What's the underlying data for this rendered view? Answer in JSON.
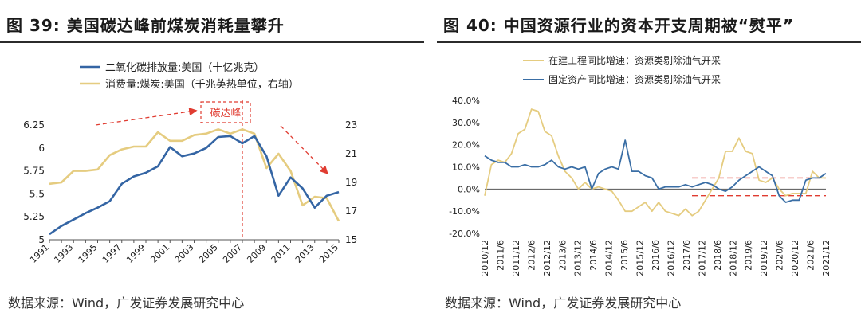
{
  "left": {
    "title_num": "图 39:",
    "title_text": "美国碳达峰前煤炭消耗量攀升",
    "source": "数据来源：Wind，广发证券发展研究中心",
    "annotation": "碳达峰",
    "chart_data": {
      "type": "line",
      "x": [
        "1991",
        "1992",
        "1993",
        "1994",
        "1995",
        "1996",
        "1997",
        "1998",
        "1999",
        "2000",
        "2001",
        "2002",
        "2003",
        "2004",
        "2005",
        "2006",
        "2007",
        "2008",
        "2009",
        "2010",
        "2011",
        "2012",
        "2013",
        "2014",
        "2015"
      ],
      "x_tick_labels": [
        "1991",
        "1993",
        "1995",
        "1997",
        "1999",
        "2001",
        "2003",
        "2005",
        "2007",
        "2009",
        "2011",
        "2013",
        "2015"
      ],
      "ylim_left": [
        5,
        6.25
      ],
      "y_ticks_left": [
        "6.25",
        "6",
        "5.75",
        "5.5",
        "5.25",
        "5"
      ],
      "ylim_right": [
        15,
        23
      ],
      "y_ticks_right": [
        "23",
        "21",
        "19",
        "17",
        "15"
      ],
      "series": [
        {
          "name": "二氧化碳排放量:美国（十亿兆克）",
          "axis": "left",
          "color": "#3465a4",
          "values": [
            5.06,
            5.15,
            5.22,
            5.29,
            5.35,
            5.42,
            5.61,
            5.69,
            5.73,
            5.8,
            6.01,
            5.91,
            5.94,
            6.0,
            6.12,
            6.13,
            6.05,
            6.13,
            5.91,
            5.48,
            5.68,
            5.56,
            5.35,
            5.48,
            5.52
          ]
        },
        {
          "name": "消费量:煤炭:美国（千兆英热单位，右轴）",
          "axis": "right",
          "color": "#e5cc80",
          "values": [
            18.9,
            19.0,
            19.8,
            19.8,
            19.9,
            20.9,
            21.3,
            21.5,
            21.5,
            22.5,
            21.9,
            21.9,
            22.3,
            22.4,
            22.7,
            22.4,
            22.7,
            22.4,
            20.0,
            21.0,
            19.8,
            17.4,
            18.0,
            17.9,
            16.3
          ]
        }
      ]
    }
  },
  "right": {
    "title_num": "图 40:",
    "title_text": "中国资源行业的资本开支周期被“熨平”",
    "source": "数据来源：Wind，广发证券发展研究中心",
    "chart_data": {
      "type": "line",
      "x_tick_labels": [
        "2010/12",
        "2011/6",
        "2011/12",
        "2012/6",
        "2012/12",
        "2013/6",
        "2013/12",
        "2014/6",
        "2014/12",
        "2015/6",
        "2015/12",
        "2016/6",
        "2016/12",
        "2017/6",
        "2017/12",
        "2018/6",
        "2018/12",
        "2019/6",
        "2019/12",
        "2020/6",
        "2020/12",
        "2021/6",
        "2021/12"
      ],
      "ylim": [
        -20,
        40
      ],
      "y_ticks": [
        "40.0%",
        "30.0%",
        "20.0%",
        "10.0%",
        "0.0%",
        "-10.0%",
        "-20.0%"
      ],
      "reference_lines": [
        5,
        -3
      ],
      "series": [
        {
          "name": "在建工程同比增速：资源类剔除油气开采",
          "color": "#e5cc80",
          "values": [
            -3,
            11,
            13,
            12,
            16,
            25,
            27,
            36,
            35,
            26,
            24,
            15,
            8,
            5,
            0,
            3,
            0,
            1,
            0,
            -1,
            -5,
            -10,
            -10,
            -8,
            -6,
            -10,
            -6,
            -10,
            -11,
            -12,
            -9,
            -12,
            -10,
            -5,
            0,
            5,
            17,
            17,
            23,
            17,
            16,
            4,
            3,
            5,
            0,
            -3,
            -2,
            -2,
            -2,
            8,
            5,
            5
          ]
        },
        {
          "name": "固定资产同比增速：资源类剔除油气开采",
          "color": "#3a6ea5",
          "values": [
            15,
            13,
            12,
            12,
            10,
            10,
            11,
            10,
            10,
            11,
            13,
            10,
            9,
            10,
            9,
            10,
            0,
            7,
            9,
            10,
            9,
            22,
            8,
            8,
            6,
            5,
            0,
            1,
            1,
            1,
            2,
            1,
            2,
            3,
            2,
            0,
            -1,
            1,
            4,
            6,
            8,
            10,
            8,
            6,
            -3,
            -6,
            -5,
            -5,
            4,
            5,
            5,
            7
          ]
        }
      ]
    }
  }
}
